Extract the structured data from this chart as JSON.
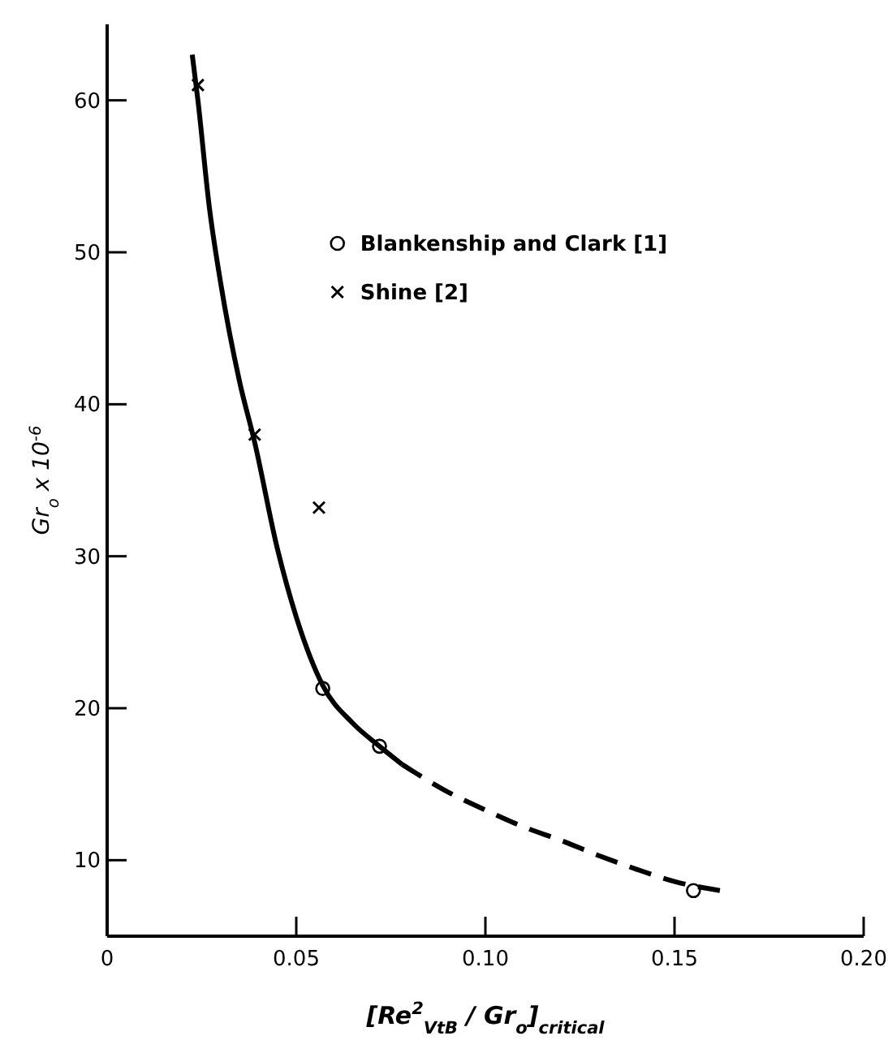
{
  "chart_data": {
    "type": "scatter",
    "xlabel": "[Re$^{2}$$_{VtB}$ / Gr$_{o}$]$_{critical}$",
    "ylabel": "Gr$_{o}$ x 10$^{-6}$",
    "xlim": [
      0,
      0.2
    ],
    "ylim": [
      5,
      65
    ],
    "xticks": [
      0,
      {
        "value": 0.05,
        "label": "0.05"
      },
      {
        "value": 0.1,
        "label": "0.10"
      },
      {
        "value": 0.15,
        "label": "0.15"
      },
      {
        "value": 0.2,
        "label": "0.20"
      }
    ],
    "yticks": [
      10,
      20,
      30,
      40,
      50,
      60
    ],
    "grid": false,
    "legend": "top right",
    "series": [
      {
        "name": "Blankenship and Clark [1]",
        "marker": "circle",
        "color": "#000000",
        "x": [
          0.057,
          0.072,
          0.155
        ],
        "values": [
          21.3,
          17.5,
          8.0
        ]
      },
      {
        "name": "Shine [2]",
        "marker": "cross",
        "color": "#000000",
        "x": [
          0.024,
          0.039,
          0.056
        ],
        "values": [
          61,
          38,
          33.2
        ]
      },
      {
        "type": "line",
        "marker": "none",
        "line_style": "solid",
        "color": "#000000",
        "x": [
          0.0225,
          0.024,
          0.027,
          0.03,
          0.035,
          0.039,
          0.045,
          0.05,
          0.057,
          0.065,
          0.072,
          0.078
        ],
        "values": [
          63,
          60,
          53,
          48,
          41.5,
          37.5,
          30.5,
          26,
          21.5,
          19,
          17.5,
          16.3
        ]
      },
      {
        "type": "line",
        "marker": "none",
        "line_style": "dashed",
        "color": "#000000",
        "x": [
          0.078,
          0.09,
          0.1,
          0.11,
          0.12,
          0.13,
          0.14,
          0.15,
          0.162
        ],
        "values": [
          16.3,
          14.5,
          13.3,
          12.2,
          11.3,
          10.3,
          9.4,
          8.6,
          8.0
        ]
      }
    ]
  }
}
